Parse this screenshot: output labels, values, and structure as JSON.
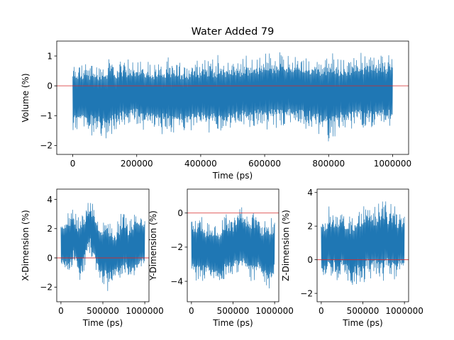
{
  "figure_title": "Water Added 79",
  "chart_data": [
    {
      "type": "line",
      "title": "Water Added 79",
      "xlabel": "Time (ps)",
      "ylabel": "Volume (%)",
      "xlim": [
        -50000,
        1050000
      ],
      "ylim": [
        -2.3,
        1.5
      ],
      "xticks": [
        0,
        200000,
        400000,
        600000,
        800000,
        1000000
      ],
      "xtick_labels": [
        "0",
        "200000",
        "400000",
        "600000",
        "800000",
        "1000000"
      ],
      "yticks": [
        -2,
        -1,
        0,
        1
      ],
      "ytick_labels": [
        "−2",
        "−1",
        "0",
        "1"
      ],
      "reference_line": 0,
      "series": [
        {
          "color": "#1f77b4",
          "x": [
            0,
            50000,
            100000,
            150000,
            200000,
            250000,
            300000,
            350000,
            400000,
            450000,
            500000,
            550000,
            600000,
            650000,
            700000,
            750000,
            800000,
            850000,
            900000,
            950000,
            1000000
          ],
          "y_max": [
            0.9,
            0.95,
            1.0,
            1.0,
            1.05,
            0.95,
            1.0,
            0.95,
            1.1,
            1.1,
            1.05,
            1.1,
            1.25,
            1.2,
            1.15,
            1.15,
            1.25,
            1.05,
            1.2,
            1.25,
            1.1
          ],
          "y_min": [
            -1.6,
            -1.7,
            -1.9,
            -1.6,
            -1.5,
            -1.6,
            -1.7,
            -1.7,
            -1.7,
            -1.7,
            -1.6,
            -1.6,
            -1.6,
            -1.6,
            -1.5,
            -1.7,
            -1.95,
            -1.6,
            -1.6,
            -1.6,
            -1.6
          ]
        }
      ]
    },
    {
      "type": "line",
      "xlabel": "Time (ps)",
      "ylabel": "X-Dimension (%)",
      "xlim": [
        -50000,
        1050000
      ],
      "ylim": [
        -3.0,
        4.7
      ],
      "xticks": [
        0,
        500000,
        1000000
      ],
      "xtick_labels": [
        "0",
        "500000",
        "1000000"
      ],
      "yticks": [
        -2,
        0,
        2,
        4
      ],
      "ytick_labels": [
        "−2",
        "0",
        "2",
        "4"
      ],
      "reference_line": 0,
      "series": [
        {
          "color": "#1f77b4",
          "x": [
            0,
            50000,
            100000,
            150000,
            200000,
            250000,
            300000,
            350000,
            400000,
            450000,
            500000,
            550000,
            600000,
            650000,
            700000,
            750000,
            800000,
            850000,
            900000,
            950000,
            1000000
          ],
          "y_max": [
            3.0,
            3.5,
            3.4,
            3.6,
            3.0,
            3.2,
            3.6,
            4.3,
            3.5,
            2.8,
            3.0,
            3.5,
            2.5,
            2.0,
            3.0,
            3.5,
            2.6,
            3.2,
            3.4,
            3.5,
            3.3
          ],
          "y_min": [
            -1.3,
            -1.6,
            -1.6,
            -0.6,
            -1.5,
            -1.8,
            -0.5,
            0.2,
            -0.8,
            -1.5,
            -2.5,
            -2.5,
            -2.0,
            -1.8,
            -2.0,
            -1.5,
            -1.6,
            -1.8,
            -1.5,
            -1.3,
            -1.4
          ]
        }
      ]
    },
    {
      "type": "line",
      "xlabel": "Time (ps)",
      "ylabel": "Y-Dimension (%)",
      "xlim": [
        -50000,
        1050000
      ],
      "ylim": [
        -5.2,
        1.4
      ],
      "xticks": [
        0,
        500000,
        1000000
      ],
      "xtick_labels": [
        "0",
        "500000",
        "1000000"
      ],
      "yticks": [
        -4,
        -2,
        0
      ],
      "ytick_labels": [
        "−4",
        "−2",
        "0"
      ],
      "reference_line": 0,
      "series": [
        {
          "color": "#1f77b4",
          "x": [
            0,
            50000,
            100000,
            150000,
            200000,
            250000,
            300000,
            350000,
            400000,
            450000,
            500000,
            550000,
            600000,
            650000,
            700000,
            750000,
            800000,
            850000,
            900000,
            950000,
            1000000
          ],
          "y_max": [
            -0.3,
            -0.1,
            0.2,
            -0.3,
            -0.5,
            -0.5,
            -0.3,
            -0.4,
            0.1,
            0.0,
            -0.2,
            0.5,
            0.9,
            0.6,
            0.3,
            0.2,
            0.2,
            -0.2,
            -0.1,
            0.0,
            -0.3
          ],
          "y_min": [
            -3.8,
            -4.2,
            -4.2,
            -4.0,
            -4.0,
            -4.3,
            -4.4,
            -4.5,
            -4.2,
            -4.0,
            -3.8,
            -3.7,
            -3.9,
            -4.0,
            -4.3,
            -4.2,
            -4.0,
            -4.4,
            -4.5,
            -4.8,
            -4.0
          ]
        }
      ]
    },
    {
      "type": "line",
      "xlabel": "Time (ps)",
      "ylabel": "Z-Dimension (%)",
      "xlim": [
        -50000,
        1050000
      ],
      "ylim": [
        -2.5,
        4.2
      ],
      "xticks": [
        0,
        500000,
        1000000
      ],
      "xtick_labels": [
        "0",
        "500000",
        "1000000"
      ],
      "yticks": [
        -2,
        0,
        2,
        4
      ],
      "ytick_labels": [
        "−2",
        "0",
        "2",
        "4"
      ],
      "reference_line": 0,
      "series": [
        {
          "color": "#1f77b4",
          "x": [
            0,
            50000,
            100000,
            150000,
            200000,
            250000,
            300000,
            350000,
            400000,
            450000,
            500000,
            550000,
            600000,
            650000,
            700000,
            750000,
            800000,
            850000,
            900000,
            950000,
            1000000
          ],
          "y_max": [
            2.8,
            3.0,
            3.3,
            3.2,
            3.0,
            3.3,
            3.0,
            2.8,
            3.0,
            3.3,
            3.4,
            3.5,
            3.7,
            3.2,
            3.8,
            3.8,
            3.4,
            3.6,
            3.3,
            3.0,
            3.1
          ],
          "y_min": [
            -1.2,
            -1.4,
            -1.5,
            -1.2,
            -1.6,
            -1.3,
            -1.4,
            -2.1,
            -1.8,
            -1.6,
            -1.8,
            -1.3,
            -1.5,
            -1.1,
            -1.6,
            -1.5,
            -1.2,
            -1.4,
            -1.5,
            -1.1,
            -1.2
          ]
        }
      ]
    }
  ]
}
